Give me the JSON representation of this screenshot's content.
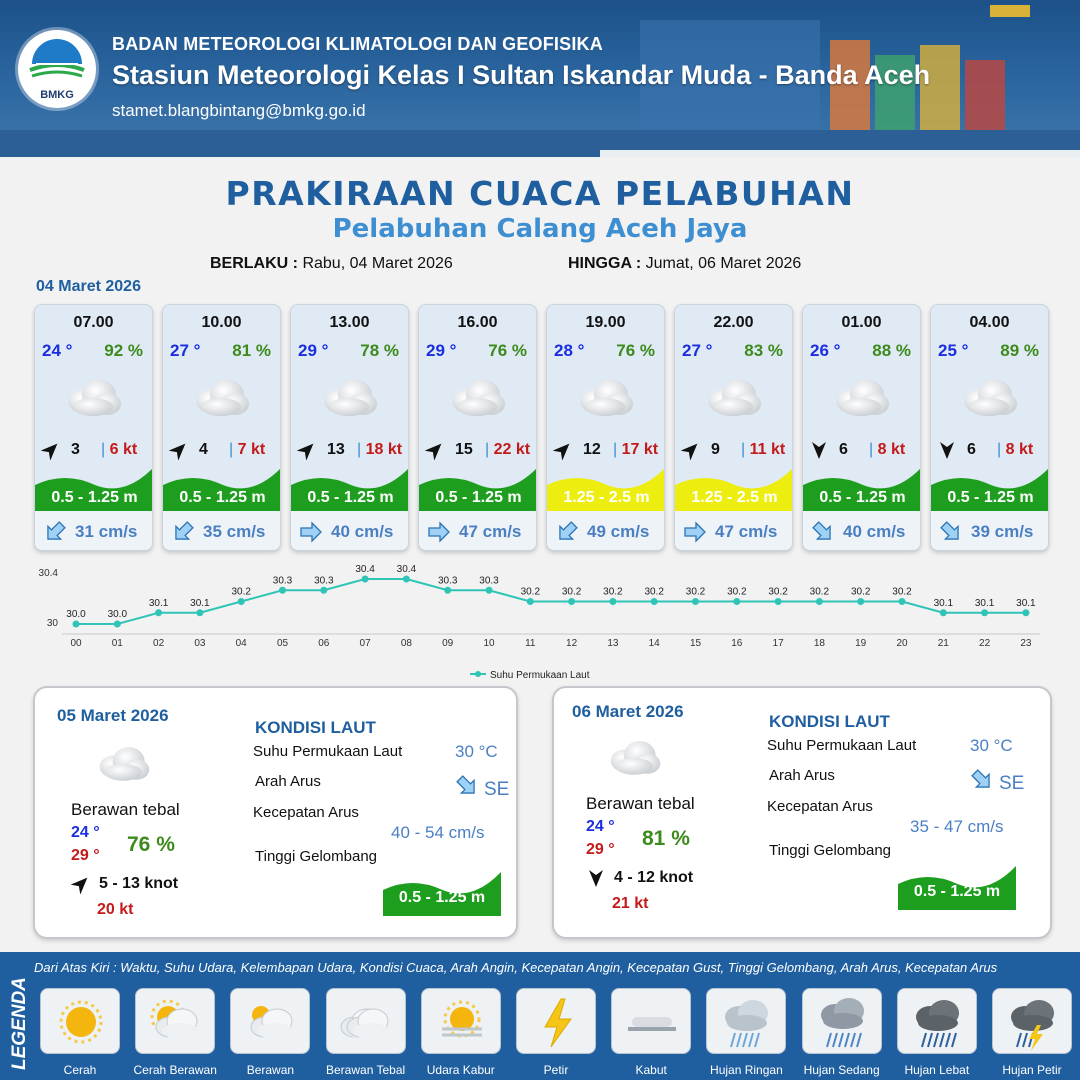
{
  "header": {
    "logo_text": "BMKG",
    "organization": "BADAN METEOROLOGI KLIMATOLOGI DAN GEOFISIKA",
    "station": "Stasiun Meteorologi Kelas I Sultan Iskandar Muda - Banda Aceh",
    "email": "stamet.blangbintang@bmkg.go.id"
  },
  "title": "PRAKIRAAN CUACA PELABUHAN",
  "subtitle": "Pelabuhan Calang Aceh Jaya",
  "validity": {
    "from_label": "BERLAKU :",
    "from_value": "Rabu, 04 Maret 2026",
    "to_label": "HINGGA :",
    "to_value": "Jumat, 06 Maret 2026"
  },
  "day1_date": "04 Maret 2026",
  "forecasts": [
    {
      "time": "07.00",
      "temp": "24 °",
      "hum": "92 %",
      "wind_dir": "NE",
      "wind": "3",
      "gust": "6 kt",
      "wave": "0.5 - 1.25 m",
      "wave_color": "#1e9e1e",
      "current_dir": "SW",
      "current": "31 cm/s"
    },
    {
      "time": "10.00",
      "temp": "27 °",
      "hum": "81 %",
      "wind_dir": "NE",
      "wind": "4",
      "gust": "7 kt",
      "wave": "0.5 - 1.25 m",
      "wave_color": "#1e9e1e",
      "current_dir": "SW",
      "current": "35 cm/s"
    },
    {
      "time": "13.00",
      "temp": "29 °",
      "hum": "78 %",
      "wind_dir": "NE",
      "wind": "13",
      "gust": "18 kt",
      "wave": "0.5 - 1.25 m",
      "wave_color": "#1e9e1e",
      "current_dir": "E",
      "current": "40 cm/s"
    },
    {
      "time": "16.00",
      "temp": "29 °",
      "hum": "76 %",
      "wind_dir": "NE",
      "wind": "15",
      "gust": "22 kt",
      "wave": "0.5 - 1.25 m",
      "wave_color": "#1e9e1e",
      "current_dir": "E",
      "current": "47 cm/s"
    },
    {
      "time": "19.00",
      "temp": "28 °",
      "hum": "76 %",
      "wind_dir": "NE",
      "wind": "12",
      "gust": "17 kt",
      "wave": "1.25 - 2.5 m",
      "wave_color": "#eded10",
      "current_dir": "SW",
      "current": "49 cm/s"
    },
    {
      "time": "22.00",
      "temp": "27 °",
      "hum": "83 %",
      "wind_dir": "NE",
      "wind": "9",
      "gust": "11 kt",
      "wave": "1.25 - 2.5 m",
      "wave_color": "#eded10",
      "current_dir": "E",
      "current": "47 cm/s"
    },
    {
      "time": "01.00",
      "temp": "26 °",
      "hum": "88 %",
      "wind_dir": "S",
      "wind": "6",
      "gust": "8 kt",
      "wave": "0.5 - 1.25 m",
      "wave_color": "#1e9e1e",
      "current_dir": "SE",
      "current": "40 cm/s"
    },
    {
      "time": "04.00",
      "temp": "25 °",
      "hum": "89 %",
      "wind_dir": "S",
      "wind": "6",
      "gust": "8 kt",
      "wave": "0.5 - 1.25 m",
      "wave_color": "#1e9e1e",
      "current_dir": "SE",
      "current": "39 cm/s"
    }
  ],
  "chart_data": {
    "type": "line",
    "x": [
      "00",
      "01",
      "02",
      "03",
      "04",
      "05",
      "06",
      "07",
      "08",
      "09",
      "10",
      "11",
      "12",
      "13",
      "14",
      "15",
      "16",
      "17",
      "18",
      "19",
      "20",
      "21",
      "22",
      "23"
    ],
    "series": [
      {
        "name": "Suhu Permukaan Laut",
        "values": [
          30.0,
          30.0,
          30.1,
          30.1,
          30.2,
          30.3,
          30.3,
          30.4,
          30.4,
          30.3,
          30.3,
          30.2,
          30.2,
          30.2,
          30.2,
          30.2,
          30.2,
          30.2,
          30.2,
          30.2,
          30.2,
          30.1,
          30.1,
          30.1
        ],
        "color": "#2ec4b6"
      }
    ],
    "ylim": [
      30,
      30.4
    ],
    "yticks": [
      "30",
      "30.4"
    ],
    "grid": false,
    "legend": "bottom-center"
  },
  "days": [
    {
      "date": "05 Maret 2026",
      "condition": "Berawan tebal",
      "tmin": "24 °",
      "tmax": "29 °",
      "hum": "76 %",
      "wind_dir": "NE",
      "wind": "5  - 13 knot",
      "gust": "20 kt",
      "kondisi_label": "KONDISI LAUT",
      "sst_label": "Suhu Permukaan Laut",
      "sst": "30 °C",
      "dir_label": "Arah Arus",
      "current_dir": "SE",
      "speed_label": "Kecepatan Arus",
      "speed": "40  - 54 cm/s",
      "wave_label": "Tinggi Gelombang",
      "wave": "0.5 - 1.25 m"
    },
    {
      "date": "06 Maret 2026",
      "condition": "Berawan tebal",
      "tmin": "24 °",
      "tmax": "29 °",
      "hum": "81 %",
      "wind_dir": "S",
      "wind": "4  - 12 knot",
      "gust": "21 kt",
      "kondisi_label": "KONDISI LAUT",
      "sst_label": "Suhu Permukaan Laut",
      "sst": "30 °C",
      "dir_label": "Arah Arus",
      "current_dir": "SE",
      "speed_label": "Kecepatan Arus",
      "speed": "35 - 47 cm/s",
      "wave_label": "Tinggi Gelombang",
      "wave": "0.5 - 1.25 m"
    }
  ],
  "legend": {
    "title": "LEGENDA",
    "description": "Dari Atas Kiri : Waktu, Suhu Udara, Kelembapan Udara, Kondisi Cuaca, Arah Angin, Kecepatan Angin, Kecepatan Gust, Tinggi Gelombang, Arah Arus, Kecepatan Arus",
    "items": [
      {
        "label": "Cerah",
        "icon": "sun-icon"
      },
      {
        "label": "Cerah Berawan",
        "icon": "sun-cloud-icon"
      },
      {
        "label": "Berawan",
        "icon": "cloudy-icon"
      },
      {
        "label": "Berawan Tebal",
        "icon": "overcast-icon"
      },
      {
        "label": "Udara Kabur",
        "icon": "haze-icon"
      },
      {
        "label": "Petir",
        "icon": "lightning-icon"
      },
      {
        "label": "Kabut",
        "icon": "fog-icon"
      },
      {
        "label": "Hujan Ringan",
        "icon": "light-rain-icon"
      },
      {
        "label": "Hujan Sedang",
        "icon": "moderate-rain-icon"
      },
      {
        "label": "Hujan Lebat",
        "icon": "heavy-rain-icon"
      },
      {
        "label": "Hujan Petir",
        "icon": "thunderstorm-icon"
      }
    ]
  }
}
